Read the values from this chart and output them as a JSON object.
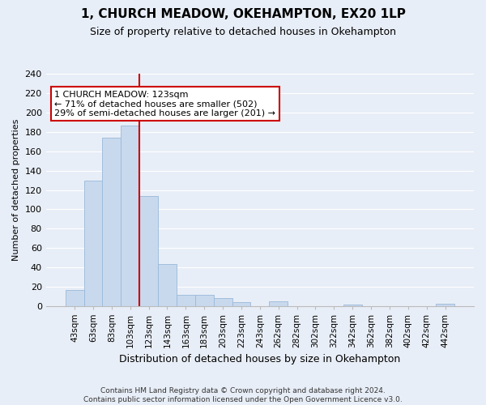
{
  "title": "1, CHURCH MEADOW, OKEHAMPTON, EX20 1LP",
  "subtitle": "Size of property relative to detached houses in Okehampton",
  "xlabel": "Distribution of detached houses by size in Okehampton",
  "ylabel": "Number of detached properties",
  "bar_labels": [
    "43sqm",
    "63sqm",
    "83sqm",
    "103sqm",
    "123sqm",
    "143sqm",
    "163sqm",
    "183sqm",
    "203sqm",
    "223sqm",
    "243sqm",
    "262sqm",
    "282sqm",
    "302sqm",
    "322sqm",
    "342sqm",
    "362sqm",
    "382sqm",
    "402sqm",
    "422sqm",
    "442sqm"
  ],
  "bar_values": [
    16,
    130,
    174,
    187,
    114,
    43,
    11,
    11,
    8,
    4,
    0,
    5,
    0,
    0,
    0,
    1,
    0,
    0,
    0,
    0,
    2
  ],
  "bar_color": "#c8d9ee",
  "bar_edge_color": "#9ab8d8",
  "vline_color": "#cc0000",
  "ylim": [
    0,
    240
  ],
  "yticks": [
    0,
    20,
    40,
    60,
    80,
    100,
    120,
    140,
    160,
    180,
    200,
    220,
    240
  ],
  "annotation_title": "1 CHURCH MEADOW: 123sqm",
  "annotation_line1": "← 71% of detached houses are smaller (502)",
  "annotation_line2": "29% of semi-detached houses are larger (201) →",
  "annotation_box_color": "#ffffff",
  "annotation_box_edge": "#cc0000",
  "footer_line1": "Contains HM Land Registry data © Crown copyright and database right 2024.",
  "footer_line2": "Contains public sector information licensed under the Open Government Licence v3.0.",
  "background_color": "#e8eef7",
  "plot_bg_color": "#e8eef7",
  "grid_color": "#ffffff",
  "title_fontsize": 11,
  "subtitle_fontsize": 9,
  "xlabel_fontsize": 9,
  "ylabel_fontsize": 8,
  "tick_fontsize": 8
}
